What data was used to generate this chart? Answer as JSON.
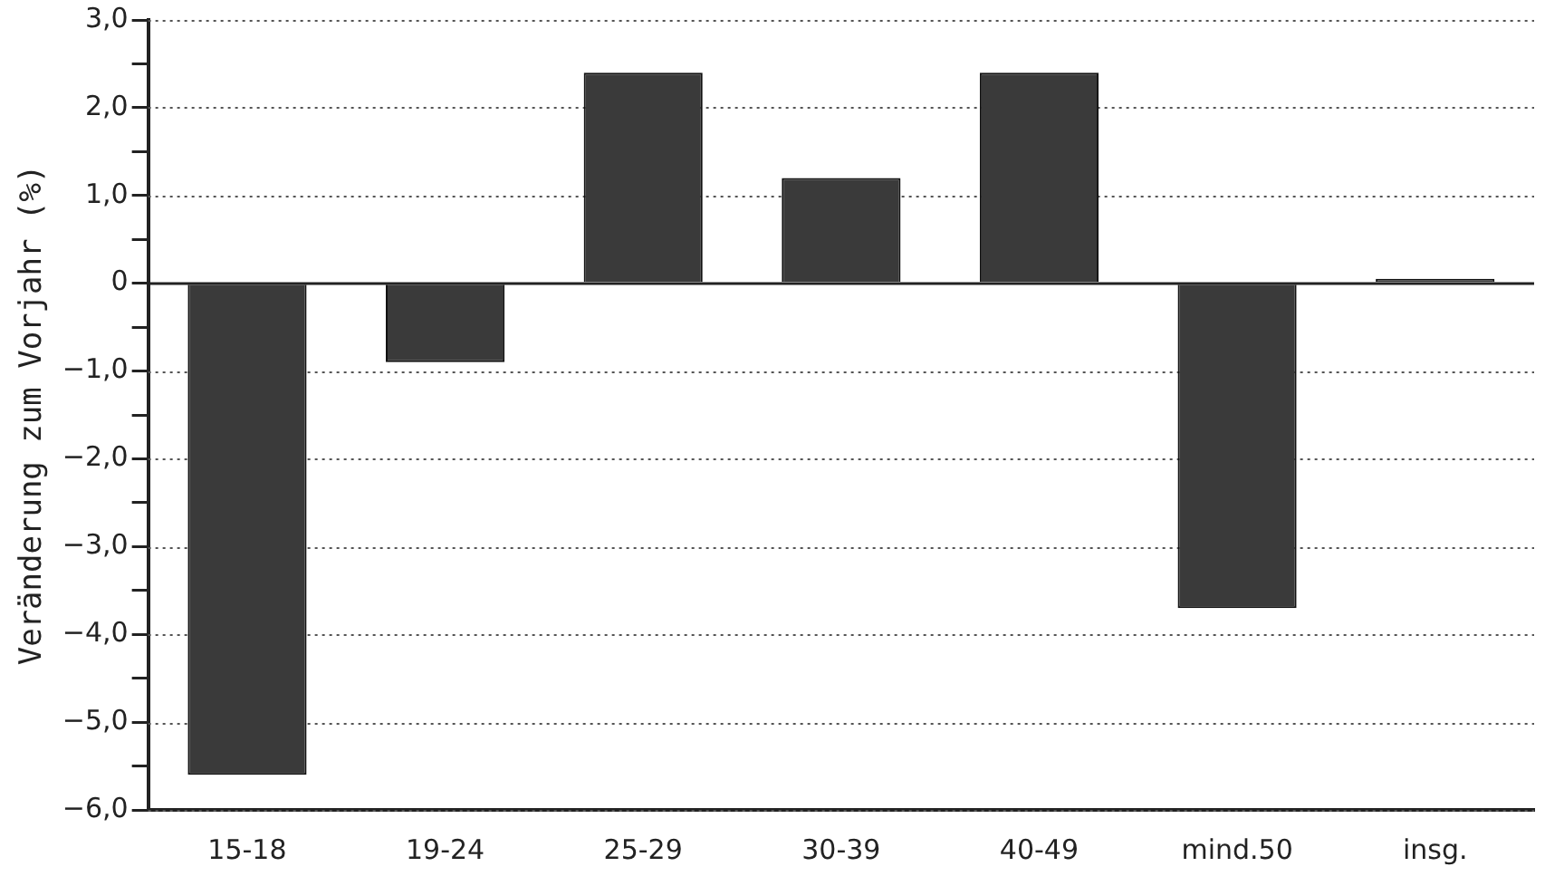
{
  "chart_data": {
    "type": "bar",
    "ylabel": "Veränderung zum Vorjahr (%)",
    "categories": [
      "15-18",
      "19-24",
      "25-29",
      "30-39",
      "40-49",
      "mind.50",
      "insg."
    ],
    "values": [
      -5.6,
      -0.9,
      2.4,
      1.2,
      2.4,
      -3.7,
      0.05
    ],
    "color": "#3a3a3a",
    "ylim": [
      -6,
      3
    ],
    "yticks": [
      {
        "value": -6,
        "label": "−6,0"
      },
      {
        "value": -5.5,
        "label": null
      },
      {
        "value": -5,
        "label": "−5,0"
      },
      {
        "value": -4.5,
        "label": null
      },
      {
        "value": -4,
        "label": "−4,0"
      },
      {
        "value": -3.5,
        "label": null
      },
      {
        "value": -3,
        "label": "−3,0"
      },
      {
        "value": -2.5,
        "label": null
      },
      {
        "value": -2,
        "label": "−2,0"
      },
      {
        "value": -1.5,
        "label": null
      },
      {
        "value": -1,
        "label": "−1,0"
      },
      {
        "value": -0.5,
        "label": null
      },
      0,
      {
        "value": 0.5,
        "label": null
      },
      {
        "value": 1,
        "label": "1,0"
      },
      {
        "value": 1.5,
        "label": null
      },
      {
        "value": 2,
        "label": "2,0"
      },
      {
        "value": 2.5,
        "label": null
      },
      {
        "value": 3,
        "label": "3,0"
      }
    ],
    "grid": "y"
  }
}
